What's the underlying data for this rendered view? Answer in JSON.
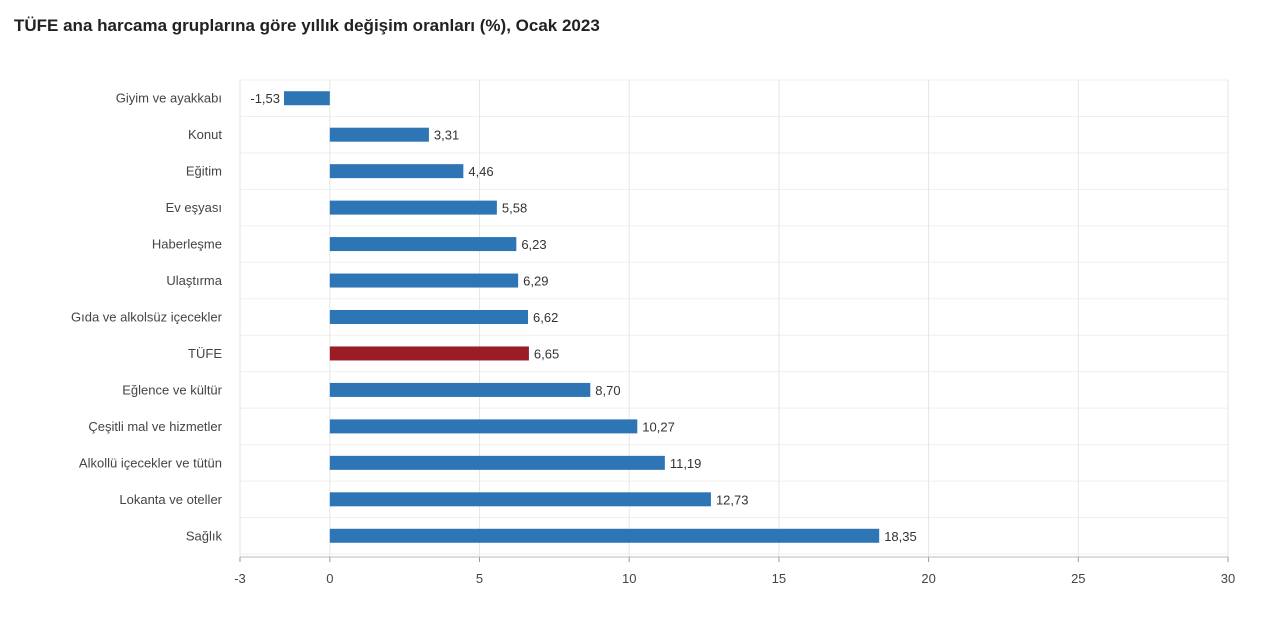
{
  "chart_data": {
    "type": "bar",
    "orientation": "horizontal",
    "title": "TÜFE ana harcama gruplarına göre yıllık değişim oranları (%), Ocak 2023",
    "categories": [
      "Giyim ve ayakkabı",
      "Konut",
      "Eğitim",
      "Ev eşyası",
      "Haberleşme",
      "Ulaştırma",
      "Gıda ve alkolsüz içecekler",
      "TÜFE",
      "Eğlence ve kültür",
      "Çeşitli mal ve hizmetler",
      "Alkollü içecekler ve tütün",
      "Lokanta ve oteller",
      "Sağlık"
    ],
    "values": [
      -1.53,
      3.31,
      4.46,
      5.58,
      6.23,
      6.29,
      6.62,
      6.65,
      8.7,
      10.27,
      11.19,
      12.73,
      18.35
    ],
    "value_labels": [
      "-1,53",
      "3,31",
      "4,46",
      "5,58",
      "6,23",
      "6,29",
      "6,62",
      "6,65",
      "8,70",
      "10,27",
      "11,19",
      "12,73",
      "18,35"
    ],
    "xlim": [
      -3,
      30
    ],
    "xticks": [
      -3,
      0,
      5,
      10,
      15,
      20,
      25,
      30
    ],
    "xtick_labels": [
      "-3",
      "0",
      "5",
      "10",
      "15",
      "20",
      "25",
      "30"
    ],
    "grid": true,
    "legend": "none",
    "colors": {
      "default": "#2e75b6",
      "highlight": "#9b1c24",
      "highlight_category": "TÜFE"
    }
  }
}
